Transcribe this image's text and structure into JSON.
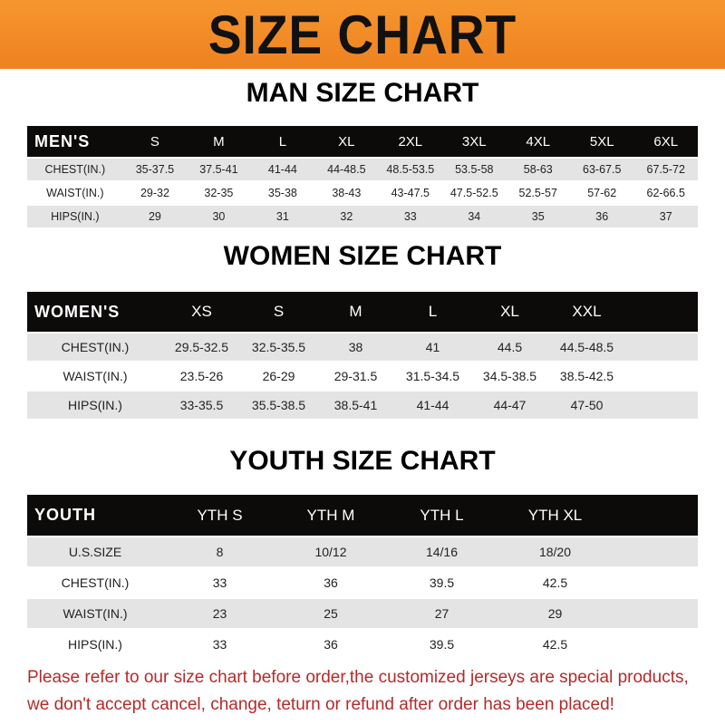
{
  "title": "SIZE CHART",
  "men": {
    "heading": "MAN SIZE CHART",
    "header": [
      "MEN'S",
      "S",
      "M",
      "L",
      "XL",
      "2XL",
      "3XL",
      "4XL",
      "5XL",
      "6XL"
    ],
    "rows": [
      [
        "CHEST(IN.)",
        "35-37.5",
        "37.5-41",
        "41-44",
        "44-48.5",
        "48.5-53.5",
        "53.5-58",
        "58-63",
        "63-67.5",
        "67.5-72"
      ],
      [
        "WAIST(IN.)",
        "29-32",
        "32-35",
        "35-38",
        "38-43",
        "43-47.5",
        "47.5-52.5",
        "52.5-57",
        "57-62",
        "62-66.5"
      ],
      [
        "HIPS(IN.)",
        "29",
        "30",
        "31",
        "32",
        "33",
        "34",
        "35",
        "36",
        "37"
      ]
    ]
  },
  "women": {
    "heading": "WOMEN SIZE CHART",
    "header": [
      "WOMEN'S",
      "XS",
      "S",
      "M",
      "L",
      "XL",
      "XXL"
    ],
    "rows": [
      [
        "CHEST(IN.)",
        "29.5-32.5",
        "32.5-35.5",
        "38",
        "41",
        "44.5",
        "44.5-48.5"
      ],
      [
        "WAIST(IN.)",
        "23.5-26",
        "26-29",
        "29-31.5",
        "31.5-34.5",
        "34.5-38.5",
        "38.5-42.5"
      ],
      [
        "HIPS(IN.)",
        "33-35.5",
        "35.5-38.5",
        "38.5-41",
        "41-44",
        "44-47",
        "47-50"
      ]
    ]
  },
  "youth": {
    "heading": "YOUTH SIZE CHART",
    "header": [
      "YOUTH",
      "YTH S",
      "YTH M",
      "YTH L",
      "YTH XL"
    ],
    "rows": [
      [
        "U.S.SIZE",
        "8",
        "10/12",
        "14/16",
        "18/20"
      ],
      [
        "CHEST(IN.)",
        "33",
        "36",
        "39.5",
        "42.5"
      ],
      [
        "WAIST(IN.)",
        "23",
        "25",
        "27",
        "29"
      ],
      [
        "HIPS(IN.)",
        "33",
        "36",
        "39.5",
        "42.5"
      ]
    ]
  },
  "note": [
    "Please refer to our size chart before order,the customized jerseys are special products,",
    "we don't accept cancel, change, teturn or refund after order has been placed!"
  ]
}
